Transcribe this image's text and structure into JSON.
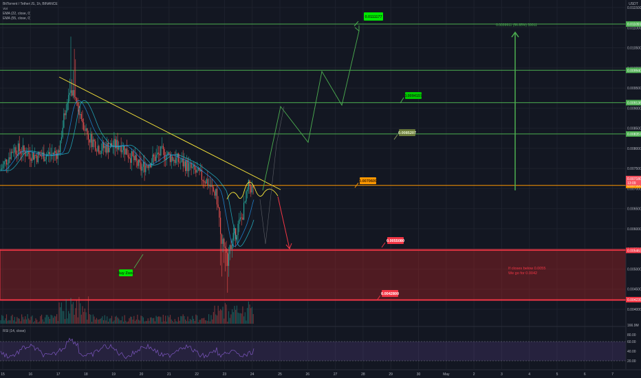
{
  "header": {
    "symbol_line": "BitTorrent / TetherUS, 1h, BINANCE",
    "sub_line": "Vol",
    "ema1": "EMA (22, close, 0)",
    "ema2": "EMA (55, close, 0)",
    "currency": "USDT"
  },
  "rsi": {
    "label": "RSI (14, close)",
    "ticks": [
      "80.00",
      "60.00",
      "40.00",
      "20.00"
    ]
  },
  "chart_data": {
    "type": "candlestick",
    "y_unit": "USDT",
    "y_ticks": [
      "0.0115000",
      "0.0110000",
      "0.0105000",
      "0.0100000",
      "0.0095000",
      "0.0090000",
      "0.0085000",
      "0.0080000",
      "0.0075000",
      "0.0070000",
      "0.0065000",
      "0.0060000",
      "0.0055000",
      "0.0050000",
      "0.0045000",
      "0.0040000"
    ],
    "x_ticks": [
      "15",
      "16",
      "17",
      "18",
      "19",
      "20",
      "21",
      "22",
      "23",
      "24",
      "25",
      "26",
      "27",
      "28",
      "29",
      "30",
      "May",
      "2",
      "3",
      "4",
      "5",
      "6",
      "7"
    ],
    "levels": [
      {
        "value": "0.0110910",
        "color": "#4caf50"
      },
      {
        "value": "0.0099400",
        "color": "#4caf50"
      },
      {
        "value": "0.0091360",
        "color": "#4caf50"
      },
      {
        "value": "0.0083577",
        "color": "#4caf50"
      },
      {
        "value": "0.0070800",
        "color": "#ff9800"
      },
      {
        "value": "0.0054630",
        "color": "#f23645"
      },
      {
        "value": "0.0042390",
        "color": "#f23645"
      }
    ],
    "current_price": {
      "value": "0.0071800",
      "countdown": "13:09"
    },
    "projection_targets": [
      "0.0111177",
      "0.0094157",
      "0.0085207",
      "0.0070609"
    ],
    "zone_labels": [
      "0.0055080",
      "0.0042800"
    ],
    "measure_label": "0.0039911 (56.85%) 39911",
    "buy_zone_label": "Buy Zone",
    "note_lines": [
      "If closes below 0.0055",
      "We go for 0.0042"
    ],
    "volume_axis": "166.9M",
    "colors": {
      "up": "#26a69a",
      "down": "#ef5350",
      "background": "#131722"
    }
  }
}
